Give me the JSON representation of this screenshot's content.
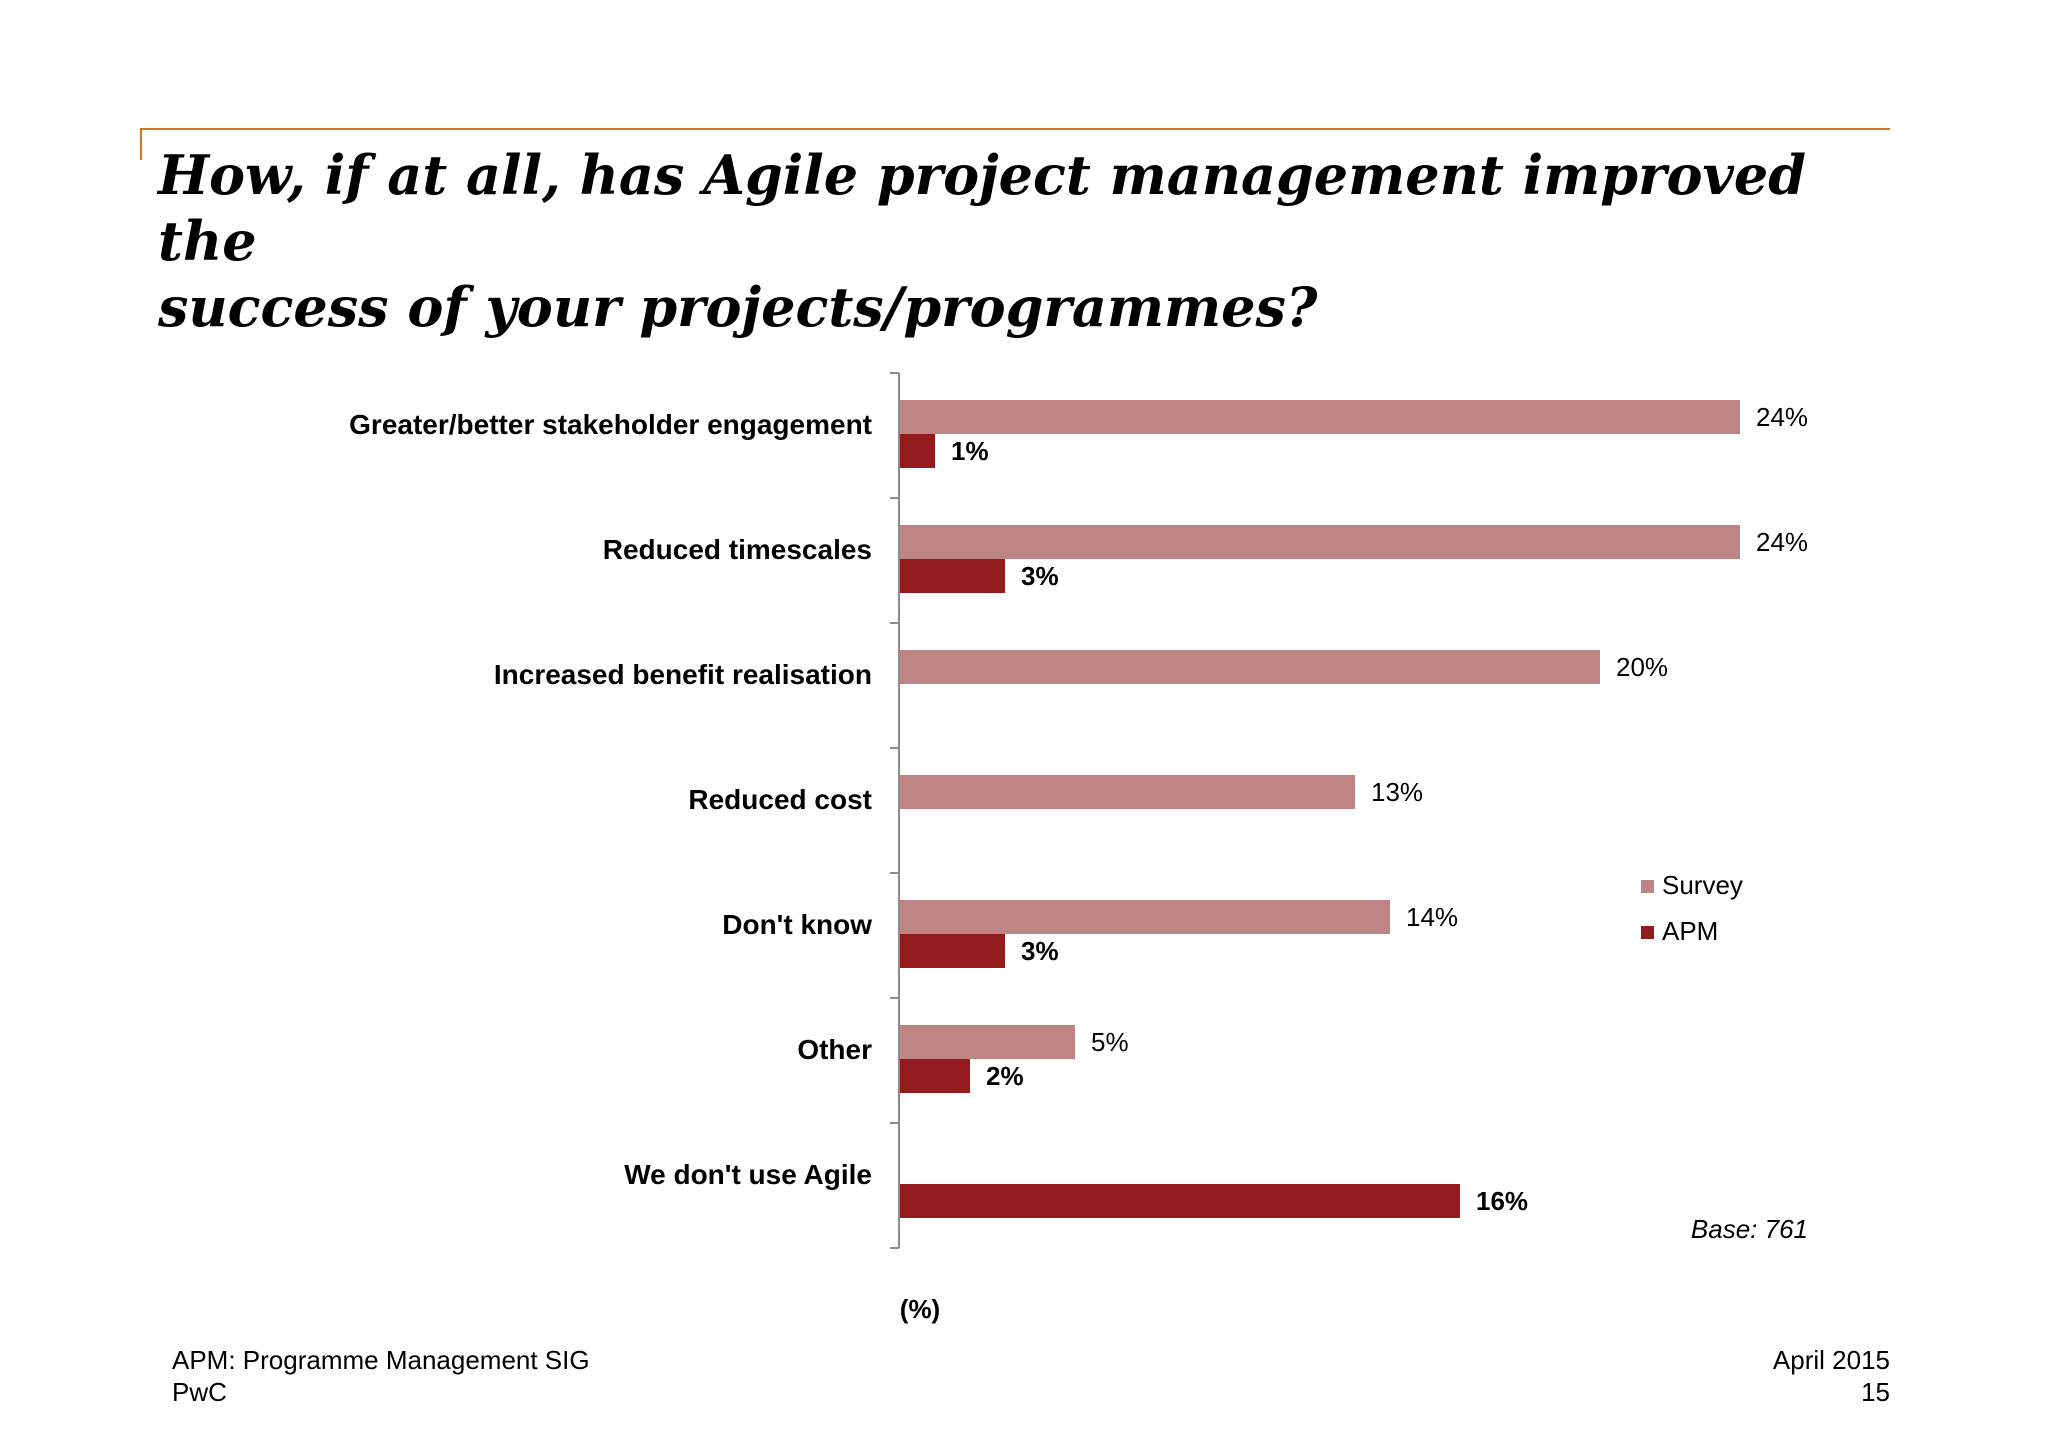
{
  "slide": {
    "title_line1": "How, if at all, has Agile project management improved the",
    "title_line2": "success of your projects/programmes?",
    "footer_left_line1": "APM: Programme Management SIG",
    "footer_left_line2": "PwC",
    "footer_right_line1": "April 2015",
    "footer_right_line2": "15",
    "base_note": "Base: 761",
    "accent_color": "#c8782a"
  },
  "chart_data": {
    "type": "bar",
    "orientation": "horizontal",
    "title": "",
    "xlabel": "(%)",
    "ylabel": "",
    "xlim": [
      0,
      25
    ],
    "grid": false,
    "legend_position": "right",
    "categories": [
      "Greater/better stakeholder engagement",
      "Reduced timescales",
      "Increased benefit realisation",
      "Reduced cost",
      "Don't know",
      "Other",
      "We don't use Agile"
    ],
    "series": [
      {
        "name": "Survey",
        "color": "#bf8585",
        "values": [
          24,
          24,
          20,
          13,
          14,
          5,
          null
        ],
        "labels": [
          "24%",
          "24%",
          "20%",
          "13%",
          "14%",
          "5%",
          ""
        ],
        "label_bold": false
      },
      {
        "name": "APM",
        "color": "#931a1d",
        "values": [
          1,
          3,
          null,
          null,
          3,
          2,
          16
        ],
        "labels": [
          "1%",
          "3%",
          "",
          "",
          "3%",
          "2%",
          "16%"
        ],
        "label_bold": true
      }
    ]
  }
}
